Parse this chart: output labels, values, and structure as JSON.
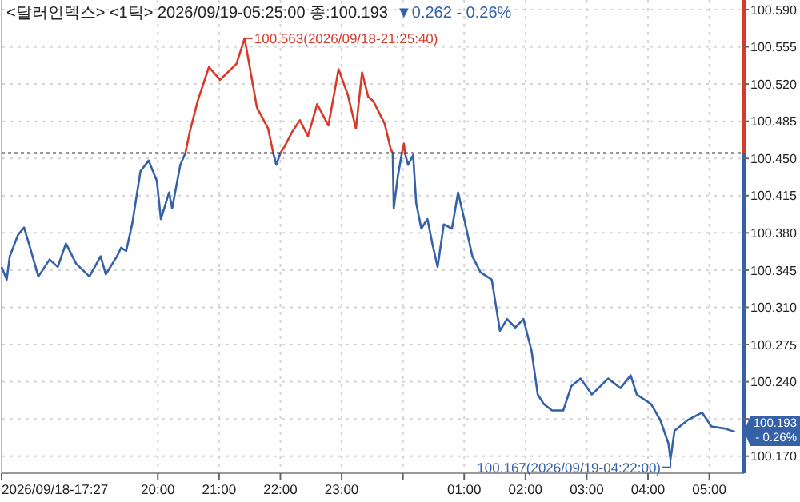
{
  "chart_data": {
    "type": "line",
    "title": "<달러인덱스> <1틱> 2026/09/19-05:25:00 종:100.193",
    "subtitle": "▼0.262 - 0.26%",
    "xlim": [
      "2026-09-18T17:27",
      "2026-09-19T05:34"
    ],
    "xticks": [
      {
        "value": "2026-09-18T17:27",
        "label": "2026/09/18-17:27"
      },
      {
        "value": "2026-09-18T20:00",
        "label": "20:00"
      },
      {
        "value": "2026-09-18T21:00",
        "label": "21:00"
      },
      {
        "value": "2026-09-18T22:00",
        "label": "22:00"
      },
      {
        "value": "2026-09-18T23:00",
        "label": "23:00"
      },
      {
        "value": "2026-09-19T00:00",
        "label": null
      },
      {
        "value": "2026-09-19T01:00",
        "label": "01:00"
      },
      {
        "value": "2026-09-19T02:00",
        "label": "02:00"
      },
      {
        "value": "2026-09-19T03:00",
        "label": "03:00"
      },
      {
        "value": "2026-09-19T04:00",
        "label": "04:00"
      },
      {
        "value": "2026-09-19T05:00",
        "label": "05:00"
      }
    ],
    "ylim": [
      100.154,
      100.599
    ],
    "yticks": [
      {
        "value": 100.17,
        "label": "100.170"
      },
      {
        "value": 100.205,
        "label": null
      },
      {
        "value": 100.24,
        "label": "100.240"
      },
      {
        "value": 100.275,
        "label": "100.275"
      },
      {
        "value": 100.31,
        "label": "100.310"
      },
      {
        "value": 100.345,
        "label": "100.345"
      },
      {
        "value": 100.38,
        "label": "100.380"
      },
      {
        "value": 100.415,
        "label": "100.415"
      },
      {
        "value": 100.45,
        "label": "100.450"
      },
      {
        "value": 100.485,
        "label": "100.485"
      },
      {
        "value": 100.52,
        "label": "100.520"
      },
      {
        "value": 100.555,
        "label": "100.555"
      },
      {
        "value": 100.59,
        "label": "100.590"
      }
    ],
    "grid": true,
    "ref_lines": [
      {
        "axis": "y",
        "value": 100.455,
        "color": "#333333",
        "line_style": "dotted"
      }
    ],
    "series": [
      {
        "color": "#3461a8",
        "x": [
          "2026-09-18T17:27",
          "2026-09-18T17:32",
          "2026-09-18T17:35",
          "2026-09-18T17:43",
          "2026-09-18T17:49",
          "2026-09-18T17:54",
          "2026-09-18T18:03",
          "2026-09-18T18:14",
          "2026-09-18T18:22",
          "2026-09-18T18:30",
          "2026-09-18T18:40",
          "2026-09-18T18:53",
          "2026-09-18T19:04",
          "2026-09-18T19:09",
          "2026-09-18T19:20",
          "2026-09-18T19:24",
          "2026-09-18T19:29",
          "2026-09-18T19:35",
          "2026-09-18T19:43",
          "2026-09-18T19:51",
          "2026-09-18T19:59",
          "2026-09-18T20:03",
          "2026-09-18T20:11",
          "2026-09-18T20:14",
          "2026-09-18T20:22",
          "2026-09-18T20:27",
          "2026-09-18T21:00",
          "2026-09-18T21:53",
          "2026-09-18T21:56",
          "2026-09-18T22:00",
          "2026-09-18T23:00",
          "2026-09-18T23:50",
          "2026-09-18T23:51",
          "2026-09-18T23:55",
          "2026-09-18T23:59",
          "2026-09-19T00:00",
          "2026-09-19T00:02",
          "2026-09-19T00:05",
          "2026-09-19T00:10",
          "2026-09-19T00:13",
          "2026-09-19T00:18",
          "2026-09-19T00:24",
          "2026-09-19T00:29",
          "2026-09-19T00:34",
          "2026-09-19T00:40",
          "2026-09-19T00:48",
          "2026-09-19T00:54",
          "2026-09-19T01:00",
          "2026-09-19T01:08",
          "2026-09-19T01:16",
          "2026-09-19T01:27",
          "2026-09-19T01:35",
          "2026-09-19T01:42",
          "2026-09-19T01:50",
          "2026-09-19T01:58",
          "2026-09-19T02:06",
          "2026-09-19T02:12",
          "2026-09-19T02:18",
          "2026-09-19T02:26",
          "2026-09-19T02:37",
          "2026-09-19T02:45",
          "2026-09-19T02:54",
          "2026-09-19T03:05",
          "2026-09-19T03:21",
          "2026-09-19T03:33",
          "2026-09-19T03:43",
          "2026-09-19T03:49",
          "2026-09-19T04:03",
          "2026-09-19T04:12",
          "2026-09-19T04:20",
          "2026-09-19T04:22",
          "2026-09-19T04:26",
          "2026-09-19T04:39",
          "2026-09-19T04:53",
          "2026-09-19T05:02",
          "2026-09-19T05:15",
          "2026-09-19T05:25"
        ],
        "values": [
          100.348,
          100.336,
          100.358,
          100.378,
          100.385,
          100.369,
          100.339,
          100.355,
          100.348,
          100.37,
          100.351,
          100.339,
          100.358,
          100.341,
          100.358,
          100.366,
          100.363,
          100.389,
          100.438,
          100.448,
          100.429,
          100.393,
          100.418,
          100.403,
          100.444,
          100.455,
          null,
          100.455,
          100.444,
          100.455,
          null,
          100.455,
          100.403,
          100.433,
          100.455,
          null,
          100.455,
          100.444,
          100.453,
          100.408,
          100.384,
          100.393,
          100.369,
          100.348,
          100.388,
          100.384,
          100.418,
          100.393,
          100.358,
          100.343,
          100.336,
          100.288,
          100.299,
          100.291,
          100.299,
          100.269,
          100.228,
          100.219,
          100.213,
          100.213,
          100.236,
          100.243,
          100.228,
          100.243,
          100.234,
          100.246,
          100.228,
          100.219,
          100.204,
          100.182,
          100.167,
          100.194,
          100.204,
          100.211,
          100.198,
          100.196,
          100.193
        ]
      },
      {
        "color": "#d63a2a",
        "x": [
          "2026-09-18T20:27",
          "2026-09-18T20:31",
          "2026-09-18T20:39",
          "2026-09-18T20:50",
          "2026-09-18T21:01",
          "2026-09-18T21:17",
          "2026-09-18T21:25",
          "2026-09-18T21:37",
          "2026-09-18T21:48",
          "2026-09-18T21:53",
          "2026-09-18T21:56",
          "2026-09-18T22:00",
          "2026-09-18T22:04",
          "2026-09-18T22:11",
          "2026-09-18T22:19",
          "2026-09-18T22:27",
          "2026-09-18T22:36",
          "2026-09-18T22:47",
          "2026-09-18T22:57",
          "2026-09-18T23:06",
          "2026-09-18T23:14",
          "2026-09-18T23:20",
          "2026-09-18T23:26",
          "2026-09-18T23:31",
          "2026-09-18T23:42",
          "2026-09-18T23:48",
          "2026-09-18T23:50",
          "2026-09-18T23:55",
          "2026-09-18T23:59",
          "2026-09-19T00:01",
          "2026-09-19T00:02"
        ],
        "values": [
          100.455,
          100.474,
          100.504,
          100.536,
          100.524,
          100.539,
          100.563,
          100.498,
          100.478,
          100.455,
          null,
          100.455,
          100.461,
          100.474,
          100.486,
          100.471,
          100.501,
          100.481,
          100.534,
          100.51,
          100.478,
          100.531,
          100.508,
          100.504,
          100.483,
          100.459,
          100.455,
          null,
          100.455,
          100.464,
          100.455
        ]
      }
    ],
    "annotations": [
      {
        "text": "100.563(2026/09/18-21:25:40)",
        "x": "2026-09-18T21:25",
        "y": 100.563
      },
      {
        "text": "100.167(2026/09/19-04:22:00)",
        "x": "2026-09-19T04:22",
        "y": 100.167
      },
      "100.193\n- 0.26%"
    ]
  }
}
